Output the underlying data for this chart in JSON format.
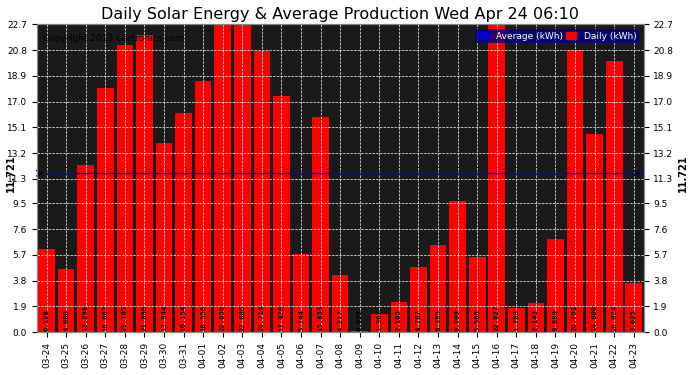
{
  "title": "Daily Solar Energy & Average Production Wed Apr 24 06:10",
  "copyright": "Copyright 2013 Cartronics.com",
  "average_value": 11.721,
  "categories": [
    "03-24",
    "03-25",
    "03-26",
    "03-27",
    "03-28",
    "03-29",
    "03-30",
    "03-31",
    "04-01",
    "04-02",
    "04-03",
    "04-04",
    "04-05",
    "04-06",
    "04-07",
    "04-08",
    "04-09",
    "04-10",
    "04-11",
    "04-12",
    "04-13",
    "04-14",
    "04-15",
    "04-16",
    "04-17",
    "04-18",
    "04-19",
    "04-20",
    "04-21",
    "04-22",
    "04-23"
  ],
  "values": [
    6.128,
    4.68,
    12.298,
    18.007,
    21.185,
    21.89,
    13.944,
    16.154,
    18.558,
    22.856,
    22.686,
    20.716,
    17.428,
    5.744,
    15.853,
    4.217,
    0.059,
    1.367,
    2.185,
    4.787,
    6.395,
    9.709,
    5.565,
    22.627,
    1.763,
    2.143,
    6.889,
    20.791,
    14.6,
    20.024,
    3.625
  ],
  "bar_color": "#ff0000",
  "avg_line_color": "#0000cd",
  "ylim": [
    0,
    22.7
  ],
  "yticks": [
    0.0,
    1.9,
    3.8,
    5.7,
    7.6,
    9.5,
    11.3,
    13.2,
    15.1,
    17.0,
    18.9,
    20.8,
    22.7
  ],
  "plot_bg_color": "#1a1a1a",
  "grid_color": "#ffffff",
  "title_fontsize": 11.5,
  "tick_fontsize": 6.5,
  "value_fontsize": 5.2,
  "avg_label_fontsize": 7,
  "legend_bg_color": "#000080",
  "legend_avg_color": "#0000cd",
  "legend_daily_color": "#ff0000",
  "legend_avg_text": "Average (kWh)",
  "legend_daily_text": "Daily (kWh)",
  "bar_width": 0.85
}
